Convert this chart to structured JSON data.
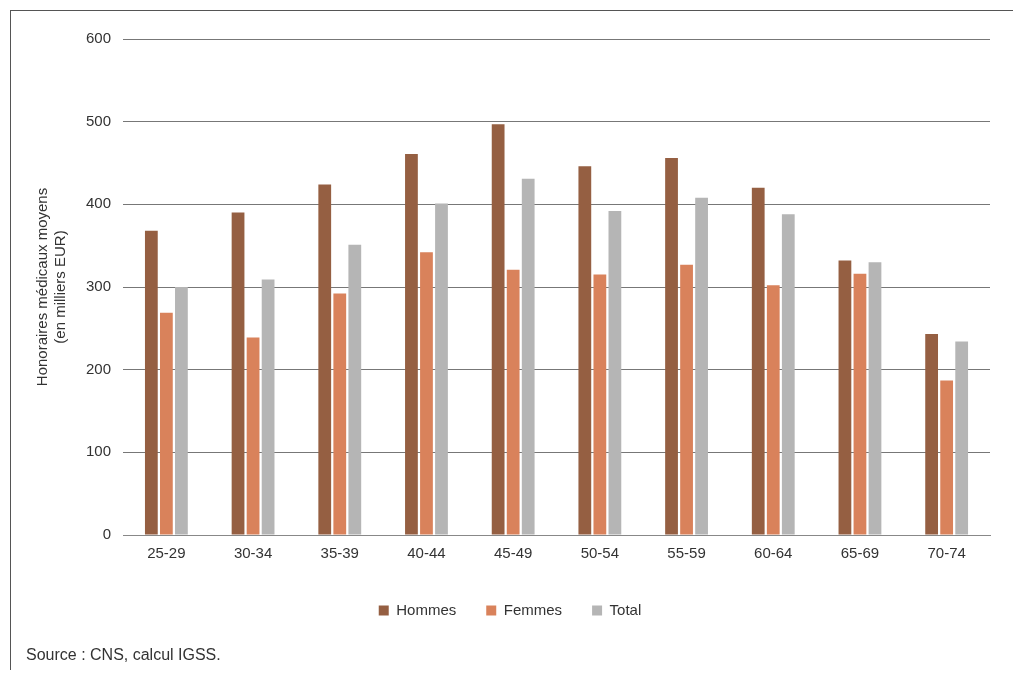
{
  "chart_data": {
    "type": "bar",
    "ylabel": "Honoraires médicaux moyens\n(en milliers EUR)",
    "categories": [
      "25-29",
      "30-34",
      "35-39",
      "40-44",
      "45-49",
      "50-54",
      "55-59",
      "60-64",
      "65-69",
      "70-74"
    ],
    "series": [
      {
        "name": "Hommes",
        "color": "#955f42",
        "values": [
          368,
          390,
          424,
          461,
          497,
          446,
          456,
          420,
          332,
          243
        ]
      },
      {
        "name": "Femmes",
        "color": "#d9825b",
        "values": [
          269,
          239,
          292,
          342,
          321,
          315,
          327,
          302,
          316,
          187
        ]
      },
      {
        "name": "Total",
        "color": "#b5b5b5",
        "values": [
          300,
          309,
          351,
          401,
          431,
          392,
          408,
          388,
          330,
          234
        ]
      }
    ],
    "ylim": [
      0,
      600
    ],
    "yticks": [
      0,
      100,
      200,
      300,
      400,
      500,
      600
    ],
    "grid": "y",
    "legend": "bottom",
    "annotations": [
      "Source : CNS, calcul IGSS."
    ]
  }
}
